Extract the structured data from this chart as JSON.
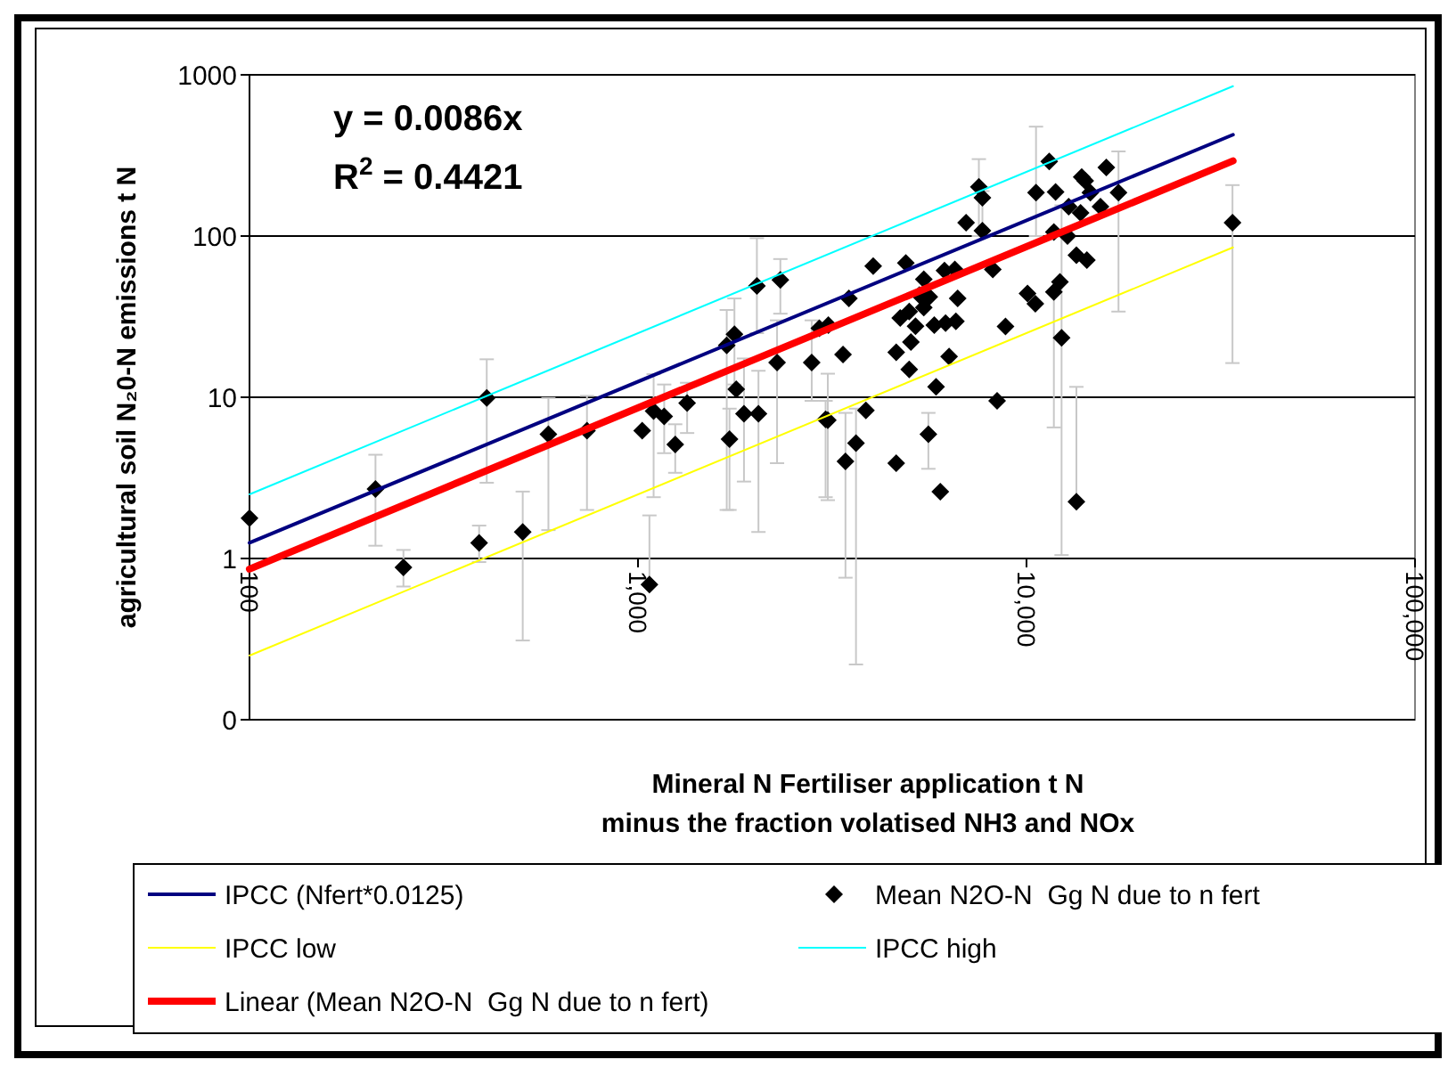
{
  "chart_data": {
    "type": "scatter",
    "xlabel": "Mineral N Fertiliser application t N\nminus the fraction volatised NH3 and NOx",
    "ylabel": "agricultural soil N₂0-N emissions t N",
    "annotations": [
      "y = 0.0086x",
      "R$^{2}$ = 0.4421"
    ],
    "log": "xy",
    "grid": "y",
    "legend": "bottom",
    "xlim": [
      100,
      100000
    ],
    "xticks": [
      {
        "value": 100,
        "label": "100"
      },
      {
        "value": 1000,
        "label": "1,000"
      },
      {
        "value": 10000,
        "label": "10,000"
      },
      {
        "value": 100000,
        "label": "100,000"
      }
    ],
    "ylim": [
      0.1,
      1000
    ],
    "yticks": [
      {
        "value": 0.1,
        "label": "0"
      },
      1,
      10,
      100,
      1000
    ],
    "series": [
      {
        "name": "IPCC (Nfert*0.0125)",
        "type": "line",
        "color": "#000080",
        "marker": "none",
        "x": [
          100,
          34000
        ],
        "values": [
          1.25,
          425
        ]
      },
      {
        "name": "Mean N2O-N  Gg N due to n fert",
        "type": "scatter",
        "color": "#000000",
        "marker": "diamond",
        "x": [
          100,
          211,
          249,
          390,
          408,
          505,
          588,
          739,
          1025,
          1070,
          1097,
          1168,
          1247,
          1338,
          1692,
          1720,
          1771,
          1790,
          1874,
          2023,
          2042,
          2280,
          2325,
          2800,
          2929,
          3040,
          3090,
          3080,
          3370,
          3420,
          3490,
          3640,
          3860,
          4030,
          4620,
          4620,
          4730,
          4890,
          4990,
          5040,
          4990,
          5180,
          5300,
          5440,
          5440,
          5620,
          5590,
          5790,
          5850,
          6000,
          6150,
          6190,
          6320,
          6540,
          6580,
          6650,
          6990,
          7540,
          7700,
          7700,
          8190,
          8400,
          8830,
          10060,
          10580,
          10540,
          11440,
          11880,
          11760,
          11760,
          12190,
          12310,
          12840,
          12750,
          13440,
          13440,
          13870,
          14160,
          13780,
          14300,
          14600,
          15500,
          16050,
          17250,
          33900
        ],
        "values": [
          1.78,
          2.7,
          0.88,
          1.25,
          9.9,
          1.46,
          5.9,
          6.2,
          6.2,
          0.69,
          8.2,
          7.6,
          5.1,
          9.2,
          21,
          5.5,
          24.6,
          11.2,
          7.9,
          49,
          7.9,
          16.4,
          53.5,
          16.4,
          26.8,
          7.3,
          28,
          7.2,
          18.4,
          4.0,
          41,
          5.2,
          8.3,
          65,
          19,
          3.9,
          31,
          68,
          14.9,
          22,
          34,
          27.6,
          43,
          54,
          36,
          42,
          5.9,
          28,
          11.6,
          2.6,
          61,
          28.8,
          17.9,
          62,
          29.6,
          41,
          121,
          202,
          173,
          108,
          62,
          9.5,
          27.5,
          44,
          186,
          38,
          290,
          188,
          106,
          45,
          52,
          23.4,
          152,
          100,
          2.25,
          76,
          232,
          220,
          139,
          71,
          186,
          152,
          266,
          186,
          121
        ],
        "errors": [
          null,
          [
            1.2,
            4.4
          ],
          [
            0.67,
            1.13
          ],
          [
            0.95,
            1.6
          ],
          [
            2.95,
            17.2
          ],
          [
            0.31,
            2.6
          ],
          [
            1.5,
            9.9
          ],
          [
            2.0,
            10.2
          ],
          null,
          [
            0.69,
            1.85
          ],
          [
            2.4,
            13.9
          ],
          [
            4.5,
            12
          ],
          [
            3.4,
            6.8
          ],
          [
            6.0,
            12.3
          ],
          [
            2.0,
            34.8
          ],
          [
            2.0,
            8.5
          ],
          [
            12,
            41
          ],
          null,
          [
            3.0,
            17.4
          ],
          [
            25,
            97
          ],
          [
            1.46,
            14.6
          ],
          [
            3.9,
            30
          ],
          [
            33,
            72
          ],
          [
            9.5,
            30
          ],
          null,
          [
            2.4,
            9.5
          ],
          null,
          [
            2.3,
            14
          ],
          null,
          [
            0.76,
            8
          ],
          null,
          [
            0.22,
            8.5
          ],
          null,
          null,
          null,
          null,
          null,
          null,
          null,
          null,
          null,
          null,
          null,
          null,
          null,
          null,
          [
            3.6,
            8
          ],
          null,
          null,
          null,
          null,
          null,
          null,
          null,
          null,
          null,
          null,
          [
            100,
            300
          ],
          [
            100,
            190
          ],
          null,
          null,
          null,
          null,
          null,
          [
            100,
            477
          ],
          null,
          null,
          null,
          null,
          [
            6.5,
            45
          ],
          null,
          [
            1.05,
            155
          ],
          null,
          null,
          [
            2.25,
            11.6
          ],
          null,
          null,
          null,
          null,
          null,
          null,
          null,
          null,
          [
            34,
            335
          ],
          [
            16.3,
            207
          ]
        ]
      },
      {
        "name": "IPCC low",
        "type": "line",
        "color": "#ffff00",
        "marker": "none",
        "x": [
          100,
          34000
        ],
        "values": [
          0.25,
          85
        ]
      },
      {
        "name": "IPCC high",
        "type": "line",
        "color": "#00ffff",
        "marker": "none",
        "x": [
          100,
          34000
        ],
        "values": [
          2.5,
          850
        ]
      },
      {
        "name": "Linear (Mean N2O-N  Gg N due to n fert)",
        "type": "line",
        "color": "#ff0000",
        "marker": "none",
        "x": [
          100,
          34000
        ],
        "values": [
          0.86,
          292.4
        ]
      }
    ]
  }
}
